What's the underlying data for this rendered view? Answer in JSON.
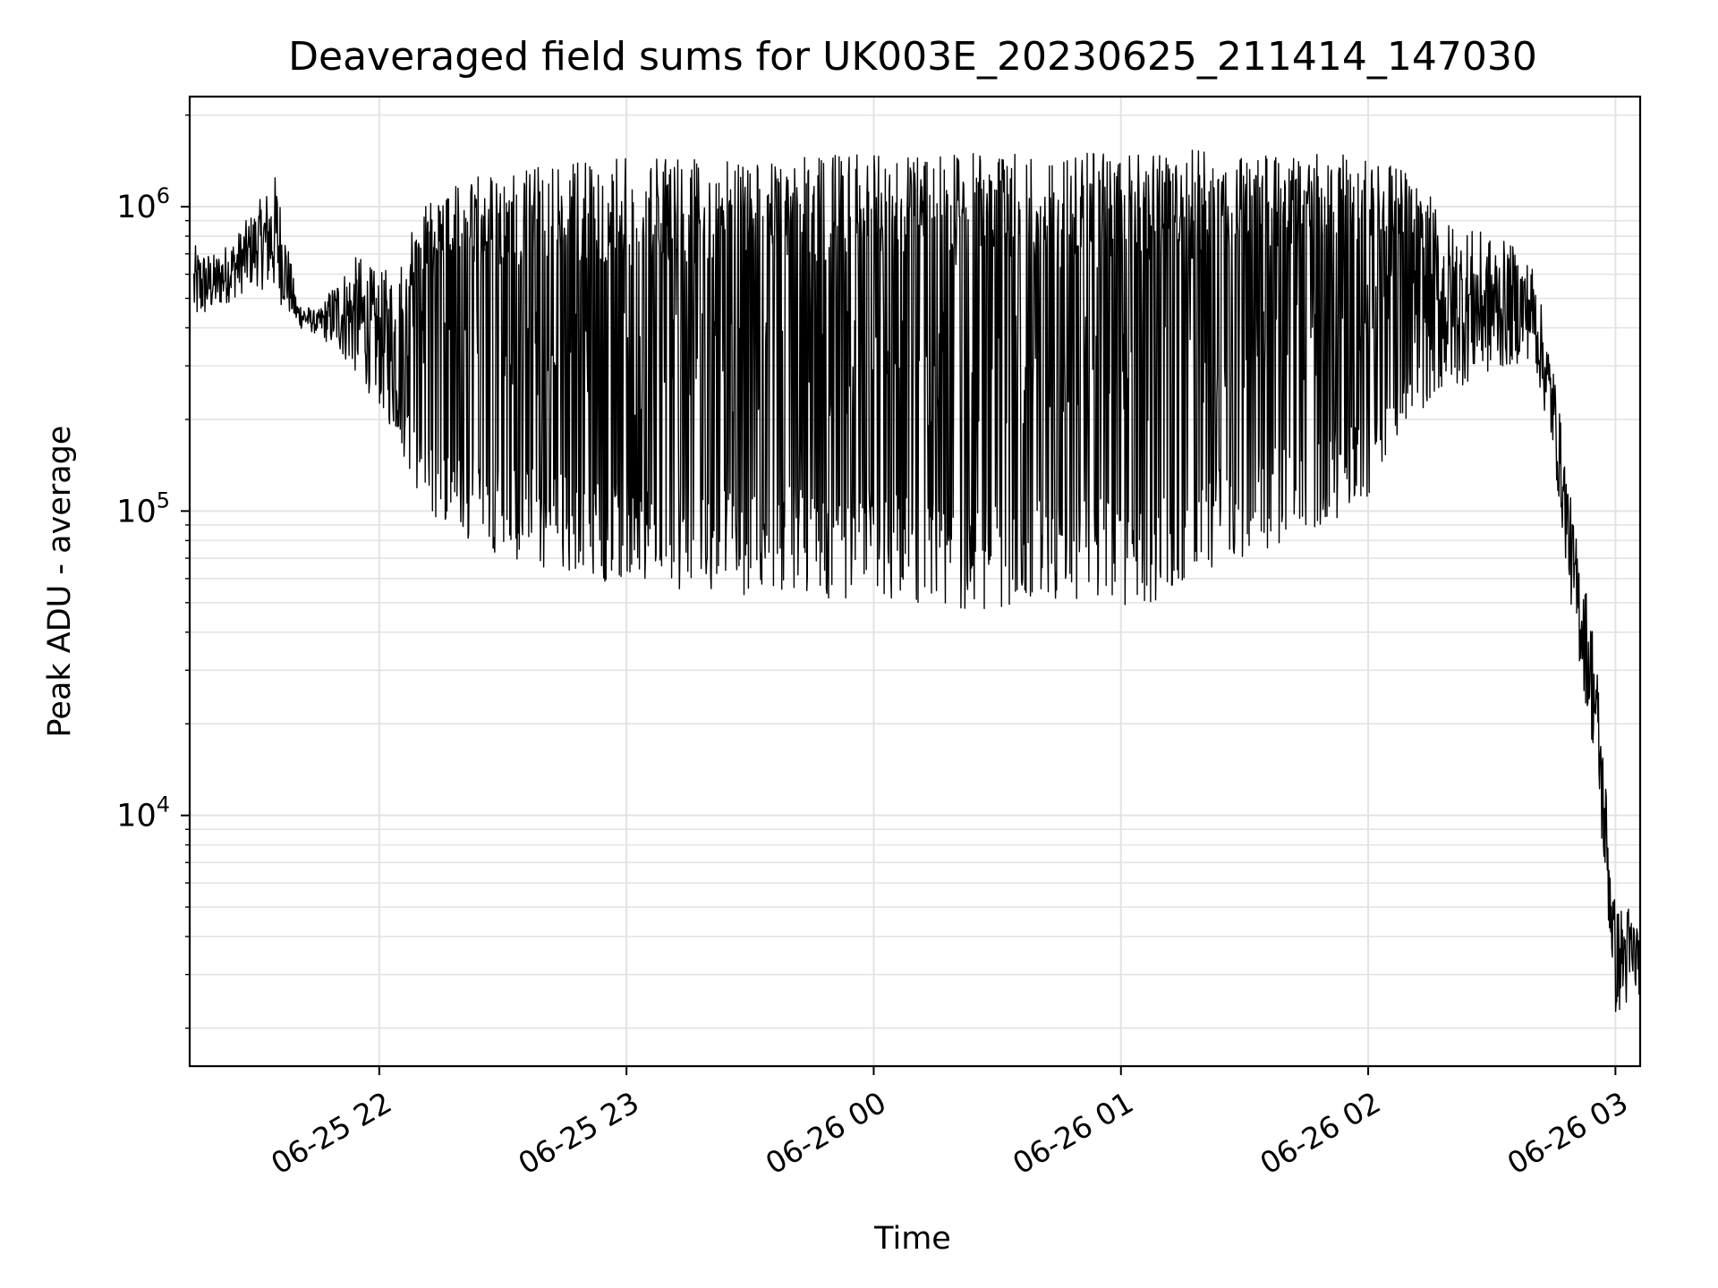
{
  "chart_data": {
    "type": "line",
    "title": "Deaveraged field sums for UK003E_20230625_211414_147030",
    "xlabel": "Time",
    "ylabel": "Peak ADU - average",
    "yscale": "log",
    "xlim": [
      "2023-06-25 21:14",
      "2023-06-26 03:06"
    ],
    "ylim": [
      1500,
      2300000
    ],
    "x_ticks": [
      "06-25 22",
      "06-25 23",
      "06-26 00",
      "06-26 01",
      "06-26 02",
      "06-26 03"
    ],
    "y_ticks": [
      {
        "base": "10",
        "exp": "4"
      },
      {
        "base": "10",
        "exp": "5"
      },
      {
        "base": "10",
        "exp": "6"
      }
    ],
    "grid": true,
    "line_color": "#000000",
    "series": [
      {
        "x": [
          "2023-06-25 21:15",
          "2023-06-25 21:20",
          "2023-06-25 21:25",
          "2023-06-25 21:30",
          "2023-06-25 21:35",
          "2023-06-25 21:40",
          "2023-06-25 21:45",
          "2023-06-25 21:50",
          "2023-06-25 21:55",
          "2023-06-25 22:00",
          "2023-06-25 22:05",
          "2023-06-25 22:10",
          "2023-06-25 22:15",
          "2023-06-25 22:20",
          "2023-06-25 22:25",
          "2023-06-25 22:30",
          "2023-06-25 22:35",
          "2023-06-25 22:40",
          "2023-06-25 22:45",
          "2023-06-25 22:50",
          "2023-06-25 22:55",
          "2023-06-25 23:00",
          "2023-06-25 23:10",
          "2023-06-25 23:20",
          "2023-06-25 23:30",
          "2023-06-25 23:40",
          "2023-06-25 23:50",
          "2023-06-26 00:00",
          "2023-06-26 00:10",
          "2023-06-26 00:20",
          "2023-06-26 00:30",
          "2023-06-26 00:40",
          "2023-06-26 00:50",
          "2023-06-26 01:00",
          "2023-06-26 01:10",
          "2023-06-26 01:20",
          "2023-06-26 01:30",
          "2023-06-26 01:40",
          "2023-06-26 01:50",
          "2023-06-26 02:00",
          "2023-06-26 02:10",
          "2023-06-26 02:20",
          "2023-06-26 02:30",
          "2023-06-26 02:35",
          "2023-06-26 02:40",
          "2023-06-26 02:45",
          "2023-06-26 02:50",
          "2023-06-26 02:55",
          "2023-06-26 03:00",
          "2023-06-26 03:03",
          "2023-06-26 03:06"
        ],
        "y_high": [
          750000,
          700000,
          800000,
          1000000,
          1300000,
          500000,
          450000,
          600000,
          700000,
          600000,
          700000,
          1000000,
          1100000,
          1200000,
          1300000,
          1350000,
          1300000,
          1400000,
          1400000,
          1450000,
          1450000,
          1450000,
          1450000,
          1500000,
          1500000,
          1500000,
          1500000,
          1500000,
          1500000,
          1500000,
          1500000,
          1500000,
          1500000,
          1500000,
          1500000,
          1550000,
          1550000,
          1500000,
          1500000,
          1450000,
          1300000,
          900000,
          800000,
          750000,
          650000,
          300000,
          90000,
          40000,
          5000,
          5200,
          4500
        ],
        "y_low": [
          400000,
          450000,
          500000,
          550000,
          500000,
          400000,
          380000,
          330000,
          270000,
          220000,
          160000,
          110000,
          90000,
          80000,
          75000,
          70000,
          68000,
          65000,
          62000,
          60000,
          58000,
          55000,
          55000,
          55000,
          52000,
          52000,
          50000,
          50000,
          48000,
          48000,
          47000,
          47000,
          46000,
          46000,
          50000,
          60000,
          70000,
          80000,
          90000,
          110000,
          200000,
          250000,
          280000,
          300000,
          320000,
          150000,
          40000,
          15000,
          2200,
          2300,
          2600
        ]
      }
    ]
  }
}
